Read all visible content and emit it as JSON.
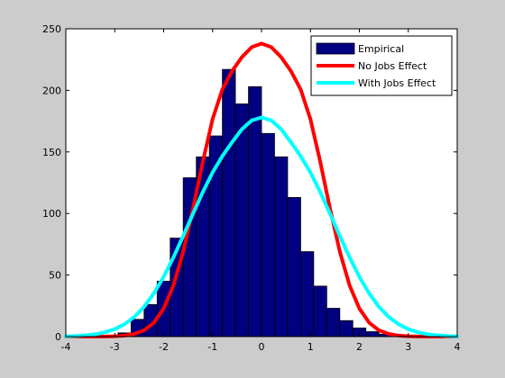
{
  "chart_data": {
    "type": "bar",
    "title": "",
    "xlabel": "",
    "ylabel": "",
    "xlim": [
      -4,
      4
    ],
    "ylim": [
      0,
      250
    ],
    "xticks": [
      -4,
      -3,
      -2,
      -1,
      0,
      1,
      2,
      3,
      4
    ],
    "yticks": [
      0,
      50,
      100,
      150,
      200,
      250
    ],
    "xtick_labels": [
      "-4",
      "-3",
      "-2",
      "-1",
      "0",
      "1",
      "2",
      "3",
      "4"
    ],
    "ytick_labels": [
      "0",
      "50",
      "100",
      "150",
      "200",
      "250"
    ],
    "grid": false,
    "legend_position": "top-right",
    "bin_width": 0.2667,
    "histogram": {
      "name": "Empirical",
      "color": "#000080",
      "bin_centers": [
        -3.067,
        -2.8,
        -2.533,
        -2.267,
        -2.0,
        -1.733,
        -1.467,
        -1.2,
        -0.933,
        -0.667,
        -0.4,
        -0.133,
        0.133,
        0.4,
        0.667,
        0.933,
        1.2,
        1.467,
        1.733,
        2.0,
        2.267,
        2.533,
        2.8,
        3.067
      ],
      "counts": [
        1,
        3,
        14,
        26,
        45,
        80,
        129,
        146,
        163,
        217,
        189,
        203,
        165,
        146,
        113,
        69,
        41,
        23,
        13,
        7,
        4,
        2,
        1,
        0
      ]
    },
    "series": [
      {
        "name": "No Jobs Effect",
        "type": "line",
        "color": "#ff0000",
        "x": [
          -4.0,
          -3.8,
          -3.6,
          -3.4,
          -3.2,
          -3.0,
          -2.8,
          -2.6,
          -2.4,
          -2.2,
          -2.0,
          -1.8,
          -1.6,
          -1.4,
          -1.2,
          -1.0,
          -0.8,
          -0.6,
          -0.4,
          -0.2,
          0.0,
          0.2,
          0.4,
          0.6,
          0.8,
          1.0,
          1.2,
          1.4,
          1.6,
          1.8,
          2.0,
          2.2,
          2.4,
          2.6,
          2.8,
          3.0,
          3.2,
          3.4,
          3.6,
          3.8,
          4.0
        ],
        "y": [
          0.0,
          0.0,
          0.0,
          0.0,
          0.1,
          0.3,
          0.8,
          2.2,
          5.1,
          11.3,
          22.8,
          41.6,
          69.1,
          104.0,
          142.1,
          176.6,
          200.8,
          215.8,
          227.0,
          235.1,
          238.0,
          235.1,
          227.0,
          215.8,
          200.8,
          176.6,
          142.1,
          104.0,
          69.1,
          41.6,
          22.8,
          11.3,
          5.1,
          2.2,
          0.8,
          0.3,
          0.1,
          0.0,
          0.0,
          0.0,
          0.0
        ]
      },
      {
        "name": "With Jobs Effect",
        "type": "line",
        "color": "#00ffff",
        "x": [
          -4.0,
          -3.8,
          -3.6,
          -3.4,
          -3.2,
          -3.0,
          -2.8,
          -2.6,
          -2.4,
          -2.2,
          -2.0,
          -1.8,
          -1.6,
          -1.4,
          -1.2,
          -1.0,
          -0.8,
          -0.6,
          -0.4,
          -0.2,
          0.0,
          0.2,
          0.4,
          0.6,
          0.8,
          1.0,
          1.2,
          1.4,
          1.6,
          1.8,
          2.0,
          2.2,
          2.4,
          2.6,
          2.8,
          3.0,
          3.2,
          3.4,
          3.6,
          3.8,
          4.0
        ],
        "y": [
          0.2,
          0.5,
          1.0,
          1.9,
          3.5,
          6.1,
          10.1,
          16.0,
          24.2,
          35.1,
          48.6,
          64.4,
          81.8,
          99.8,
          117.4,
          133.3,
          146.6,
          158.0,
          168.5,
          175.6,
          178.0,
          175.6,
          168.5,
          158.0,
          146.6,
          133.3,
          117.4,
          99.8,
          81.8,
          64.4,
          48.6,
          35.1,
          24.2,
          16.0,
          10.1,
          6.1,
          3.5,
          1.9,
          1.0,
          0.5,
          0.2
        ]
      }
    ],
    "legend_entries": [
      "Empirical",
      "No Jobs Effect",
      "With Jobs Effect"
    ]
  }
}
